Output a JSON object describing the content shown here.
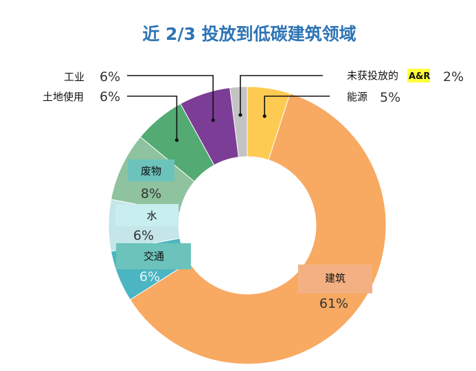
{
  "chart_data": {
    "type": "pie",
    "title": "近 2/3 投放到低碳建筑领域",
    "slices": [
      {
        "label": "能源",
        "value": 5,
        "value_text": "5%",
        "color": "#fecb52"
      },
      {
        "label": "建筑",
        "value": 61,
        "value_text": "61%",
        "color": "#f8a962"
      },
      {
        "label": "交通",
        "value": 6,
        "value_text": "6%",
        "color": "#4bb5c1"
      },
      {
        "label": "水",
        "value": 6,
        "value_text": "6%",
        "color": "#c4e6e9"
      },
      {
        "label": "废物",
        "value": 8,
        "value_text": "8%",
        "color": "#8fc29e"
      },
      {
        "label": "土地使用",
        "value": 6,
        "value_text": "6%",
        "color": "#53aa73"
      },
      {
        "label": "工业",
        "value": 6,
        "value_text": "6%",
        "color": "#7c3d96"
      },
      {
        "label": "未获投放的",
        "label_badge": "A&R",
        "value": 2,
        "value_text": "2%",
        "color": "#c3c3c3"
      }
    ],
    "hole": "donut",
    "legend": "none"
  },
  "colors": {
    "title": "#2e74b5",
    "badge": "#ffff3a",
    "label_box_teal": "#6cc3bb",
    "label_box_light": "#c8eef0",
    "label_box_orange": "#f3b183"
  }
}
